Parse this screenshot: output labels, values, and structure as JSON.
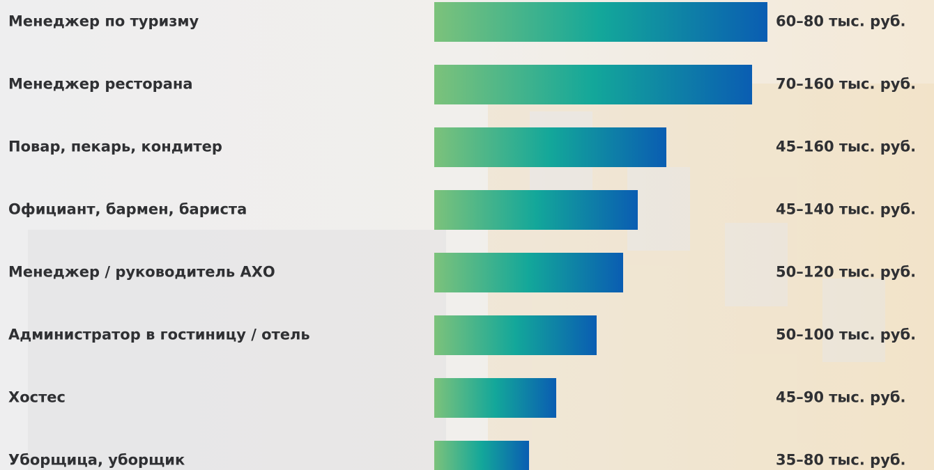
{
  "chart_data": {
    "type": "bar",
    "orientation": "horizontal",
    "categories": [
      "Менеджер по туризму",
      "Менеджер ресторана",
      "Повар, пекарь, кондитер",
      "Официант, бармен, бариста",
      "Менеджер / руководитель АХО",
      "Администратор в гостиницу / отель",
      "Хостес",
      "Уборщица, уборщик"
    ],
    "values": [
      478,
      456,
      333,
      292,
      271,
      233,
      175,
      136
    ],
    "salaries": [
      "60–80 тыс. руб.",
      "70–160 тыс. руб.",
      "45–160 тыс. руб.",
      "45–140 тыс. руб.",
      "50–120 тыс. руб.",
      "50–100 тыс. руб.",
      "45–90 тыс. руб.",
      "35–80 тыс. руб."
    ],
    "colors": [
      "#7cc27b",
      "#13a79a",
      "#0a5db2"
    ]
  }
}
